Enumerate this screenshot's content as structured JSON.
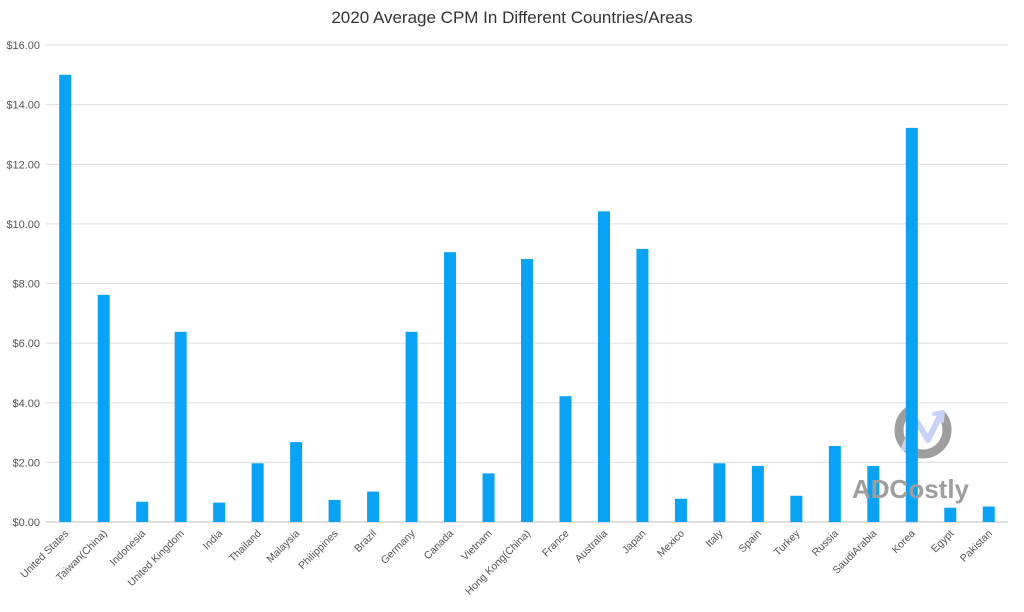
{
  "chart_data": {
    "type": "bar",
    "title": "2020 Average CPM In Different Countries/Areas",
    "xlabel": "",
    "ylabel": "",
    "ylim": [
      0,
      16
    ],
    "ytick_labels": [
      "$0.00",
      "$2.00",
      "$4.00",
      "$6.00",
      "$8.00",
      "$10.00",
      "$12.00",
      "$14.00",
      "$16.00"
    ],
    "grid": true,
    "legend": "none",
    "bar_color": "#0aa2f5",
    "categories": [
      "United States",
      "Taiwan(China)",
      "Indonesia",
      "United Kingdom",
      "India",
      "Thailand",
      "Malaysia",
      "Philippines",
      "Brazil",
      "Germany",
      "Canada",
      "Vietnam",
      "Hong Kong(China)",
      "France",
      "Australia",
      "Japan",
      "Mexico",
      "Italy",
      "Spain",
      "Turkey",
      "Russia",
      "SaudiArabia",
      "Korea",
      "Egypt",
      "Pakistan"
    ],
    "values": [
      15.0,
      7.62,
      0.68,
      6.38,
      0.65,
      1.97,
      2.68,
      0.74,
      1.02,
      6.38,
      9.05,
      1.63,
      8.82,
      4.22,
      10.42,
      9.16,
      0.78,
      1.97,
      1.88,
      0.88,
      2.55,
      1.88,
      13.22,
      0.48,
      0.52
    ]
  },
  "watermark": {
    "text": "ADCostly",
    "icon": "adcostly-logo-icon",
    "color": "#9e9e9e"
  }
}
